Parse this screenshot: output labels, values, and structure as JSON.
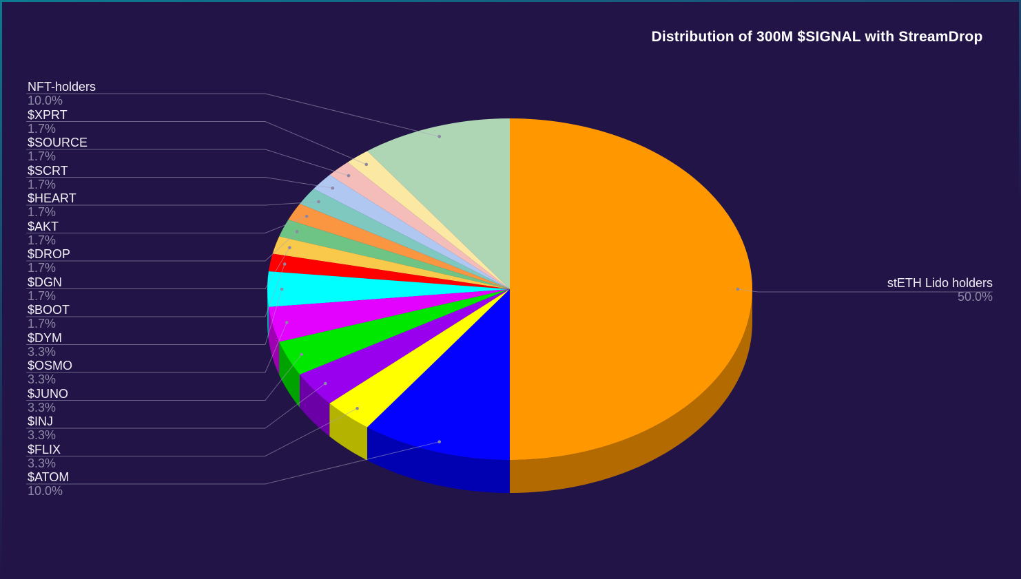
{
  "title": "Distribution of 300M $SIGNAL with StreamDrop",
  "theme": {
    "background": "#221447",
    "title_color": "#FFFFFF",
    "label_color": "#F1EFF6",
    "pct_color": "#8D89A6",
    "leader_line_color": "#A8A4C0",
    "leader_dot_color": "#8B87A4",
    "frame_top_color": "#1B4A71",
    "frame_side_color": "#0E7A90"
  },
  "chart_data": {
    "type": "pie",
    "is_3d": true,
    "title": "Distribution of 300M $SIGNAL with StreamDrop",
    "start_angle_deg": 90,
    "direction": "counterclockwise",
    "legend_position": "none",
    "slices": [
      {
        "label": "NFT-holders",
        "pct_label": "10.0%",
        "value": 10,
        "color": "#AED6B5",
        "side": "left"
      },
      {
        "label": "$XPRT",
        "pct_label": "1.7%",
        "value": 1.6667,
        "color": "#FBE8A3",
        "side": "left"
      },
      {
        "label": "$SOURCE",
        "pct_label": "1.7%",
        "value": 1.6667,
        "color": "#F4BDB9",
        "side": "left"
      },
      {
        "label": "$SCRT",
        "pct_label": "1.7%",
        "value": 1.6667,
        "color": "#AFC7F1",
        "side": "left"
      },
      {
        "label": "$HEART",
        "pct_label": "1.7%",
        "value": 1.6667,
        "color": "#7EC8C0",
        "side": "left"
      },
      {
        "label": "$AKT",
        "pct_label": "1.7%",
        "value": 1.6667,
        "color": "#FA9642",
        "side": "left"
      },
      {
        "label": "$DROP",
        "pct_label": "1.7%",
        "value": 1.6667,
        "color": "#6EC485",
        "side": "left"
      },
      {
        "label": "$DGN",
        "pct_label": "1.7%",
        "value": 1.6667,
        "color": "#F8C94A",
        "side": "left"
      },
      {
        "label": "$BOOT",
        "pct_label": "1.7%",
        "value": 1.6667,
        "color": "#FE0000",
        "side": "left"
      },
      {
        "label": "$DYM",
        "pct_label": "3.3%",
        "value": 3.3333,
        "color": "#00FFFF",
        "side": "left"
      },
      {
        "label": "$OSMO",
        "pct_label": "3.3%",
        "value": 3.3333,
        "color": "#E202FE",
        "side": "left"
      },
      {
        "label": "$JUNO",
        "pct_label": "3.3%",
        "value": 3.3333,
        "color": "#00E800",
        "side": "left"
      },
      {
        "label": "$INJ",
        "pct_label": "3.3%",
        "value": 3.3333,
        "color": "#9900EE",
        "side": "left"
      },
      {
        "label": "$FLIX",
        "pct_label": "3.3%",
        "value": 3.3333,
        "color": "#FFFF00",
        "side": "left"
      },
      {
        "label": "$ATOM",
        "pct_label": "10.0%",
        "value": 10,
        "color": "#0202FE",
        "side": "left"
      },
      {
        "label": "stETH Lido holders",
        "pct_label": "50.0%",
        "value": 50,
        "color": "#FF9800",
        "side": "right"
      }
    ]
  }
}
